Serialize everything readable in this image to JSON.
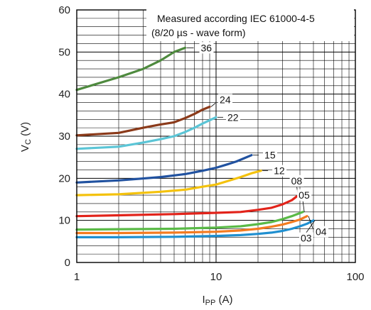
{
  "chart_data": {
    "type": "line",
    "x_scale": "log",
    "xlim": [
      1,
      100
    ],
    "ylim": [
      0,
      60
    ],
    "grid": true,
    "x_ticks": [
      "1",
      "10",
      "100"
    ],
    "y_ticks": [
      "0",
      "10",
      "20",
      "30",
      "40",
      "50",
      "60"
    ],
    "ylabel_main": "V",
    "ylabel_sub": "C",
    "ylabel_unit": " (V)",
    "xlabel_main": "I",
    "xlabel_sub": "PP",
    "xlabel_unit": " (A)",
    "annotation": [
      "Measured according IEC 61000-4-5",
      "(8/20 µs - wave form)"
    ],
    "series": [
      {
        "name": "36",
        "color": "#4e8a3e",
        "x": [
          1,
          2,
          3,
          4,
          5,
          6
        ],
        "y": [
          41,
          44,
          46,
          48,
          50,
          51
        ]
      },
      {
        "name": "24",
        "color": "#8b3a1a",
        "x": [
          1,
          2,
          3,
          4,
          5,
          6,
          7,
          8,
          9
        ],
        "y": [
          30.2,
          30.8,
          32,
          32.8,
          33.3,
          34.3,
          35.3,
          36.3,
          37
        ]
      },
      {
        "name": "22",
        "color": "#5bc5d6",
        "x": [
          1,
          2,
          3,
          4,
          5,
          6,
          7,
          8,
          9,
          10
        ],
        "y": [
          27,
          27.5,
          28.5,
          29.3,
          30,
          31,
          32,
          33,
          33.8,
          34.5
        ]
      },
      {
        "name": "15",
        "color": "#2152a0",
        "x": [
          1,
          2,
          4,
          6,
          8,
          10,
          12,
          14,
          16,
          18
        ],
        "y": [
          19,
          19.5,
          20.3,
          21,
          21.8,
          22.5,
          23.3,
          24,
          24.8,
          25.5
        ]
      },
      {
        "name": "12",
        "color": "#f4c20d",
        "x": [
          1,
          2,
          4,
          6,
          8,
          10,
          12,
          15,
          18,
          21
        ],
        "y": [
          16,
          16.2,
          16.8,
          17.3,
          18,
          18.5,
          19.3,
          20.3,
          21.2,
          21.8
        ]
      },
      {
        "name": "08",
        "color": "#e2231a",
        "x": [
          1,
          2,
          5,
          10,
          15,
          20,
          25,
          30,
          35,
          38
        ],
        "y": [
          11,
          11.2,
          11.5,
          11.8,
          12,
          12.5,
          13,
          13.8,
          14.8,
          15.7
        ]
      },
      {
        "name": "05",
        "color": "#5aba47",
        "x": [
          1,
          2,
          5,
          10,
          15,
          20,
          25,
          30,
          35,
          42
        ],
        "y": [
          7.8,
          7.9,
          8,
          8.3,
          8.6,
          9.1,
          9.6,
          10.3,
          11,
          12
        ]
      },
      {
        "name": "04",
        "color": "#f47b20",
        "x": [
          1,
          2,
          5,
          10,
          15,
          20,
          25,
          30,
          35,
          40,
          45
        ],
        "y": [
          7,
          7,
          7.1,
          7.3,
          7.6,
          8,
          8.5,
          9,
          9.6,
          10.2,
          11
        ]
      },
      {
        "name": "03",
        "color": "#1f8fd0",
        "x": [
          1,
          2,
          5,
          10,
          15,
          20,
          25,
          30,
          35,
          40,
          45,
          50
        ],
        "y": [
          6,
          6,
          6.1,
          6.3,
          6.5,
          6.8,
          7.1,
          7.5,
          8,
          8.6,
          9.2,
          10
        ]
      }
    ]
  }
}
